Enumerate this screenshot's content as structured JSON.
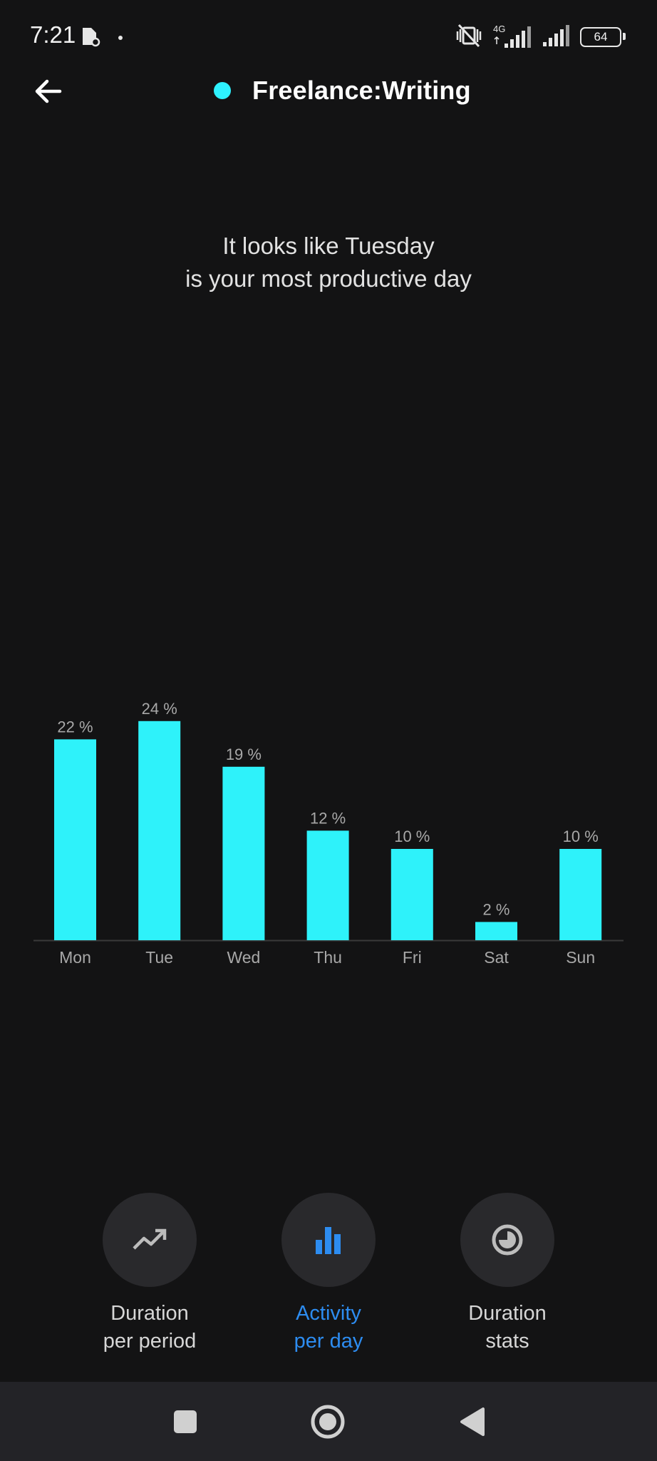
{
  "status": {
    "time": "7:21",
    "network": "4G",
    "battery": "64"
  },
  "header": {
    "title": "Freelance:Writing",
    "dot_color": "#2ef2ff"
  },
  "insight": {
    "line1": "It looks like Tuesday",
    "line2": "is your most productive day"
  },
  "chart_data": {
    "type": "bar",
    "categories": [
      "Mon",
      "Tue",
      "Wed",
      "Thu",
      "Fri",
      "Sat",
      "Sun"
    ],
    "values": [
      22,
      24,
      19,
      12,
      10,
      2,
      10
    ],
    "data_labels": [
      "22 %",
      "24 %",
      "19 %",
      "12 %",
      "10 %",
      "2 %",
      "10 %"
    ],
    "bar_color": "#2ef2fa",
    "label_color": "#a8a8a8",
    "grid": false,
    "title": "",
    "xlabel": "",
    "ylabel": ""
  },
  "nav": {
    "items": [
      {
        "line1": "Duration",
        "line2": "per period",
        "icon": "trending-up-icon",
        "active": false
      },
      {
        "line1": "Activity",
        "line2": "per day",
        "icon": "bar-chart-icon",
        "active": true
      },
      {
        "line1": "Duration",
        "line2": "stats",
        "icon": "pie-chart-icon",
        "active": false
      }
    ],
    "active_color": "#2d8cf0",
    "inactive_color": "#d6d6d6"
  },
  "system_nav": {
    "buttons": [
      "recents-button",
      "home-button",
      "back-button"
    ]
  }
}
